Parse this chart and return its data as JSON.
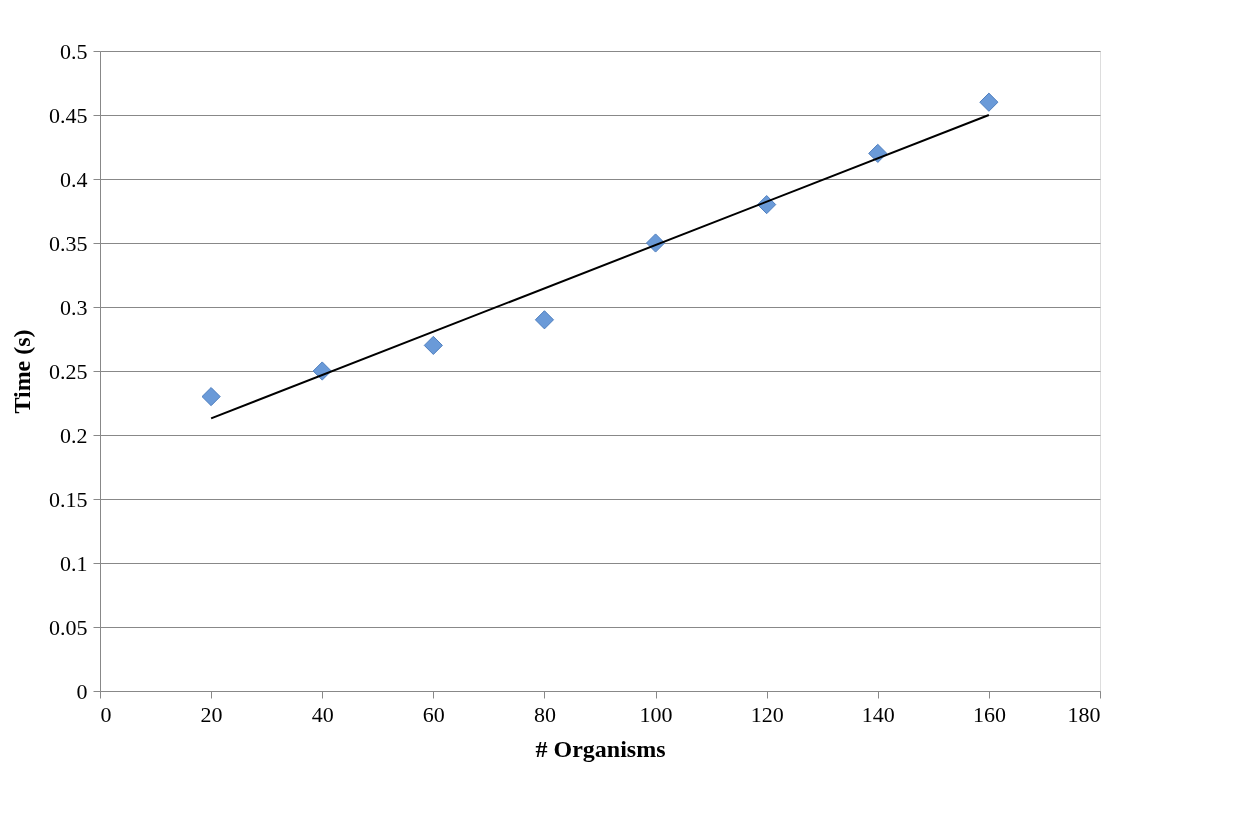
{
  "chart_data": {
    "type": "scatter",
    "xlabel": "# Organisms",
    "ylabel": "Time (s)",
    "xlim": [
      0,
      180
    ],
    "xticks": [
      0,
      20,
      40,
      60,
      80,
      100,
      120,
      140,
      160,
      180
    ],
    "ylim": [
      0,
      0.5
    ],
    "yticks": [
      0,
      0.05,
      0.1,
      0.15,
      0.2,
      0.25,
      0.3,
      0.35,
      0.4,
      0.45,
      0.5
    ],
    "grid": "y",
    "legend": false,
    "series": [
      {
        "marker": "diamond",
        "color": "#6a9ad8",
        "x": [
          20,
          40,
          60,
          80,
          100,
          120,
          140,
          160
        ],
        "values": [
          0.23,
          0.25,
          0.27,
          0.29,
          0.35,
          0.38,
          0.42,
          0.46
        ]
      },
      {
        "type": "line",
        "marker": "none",
        "line_style": "solid",
        "color": "#000000",
        "x": [
          20,
          160
        ],
        "values": [
          0.213,
          0.45
        ]
      }
    ]
  }
}
